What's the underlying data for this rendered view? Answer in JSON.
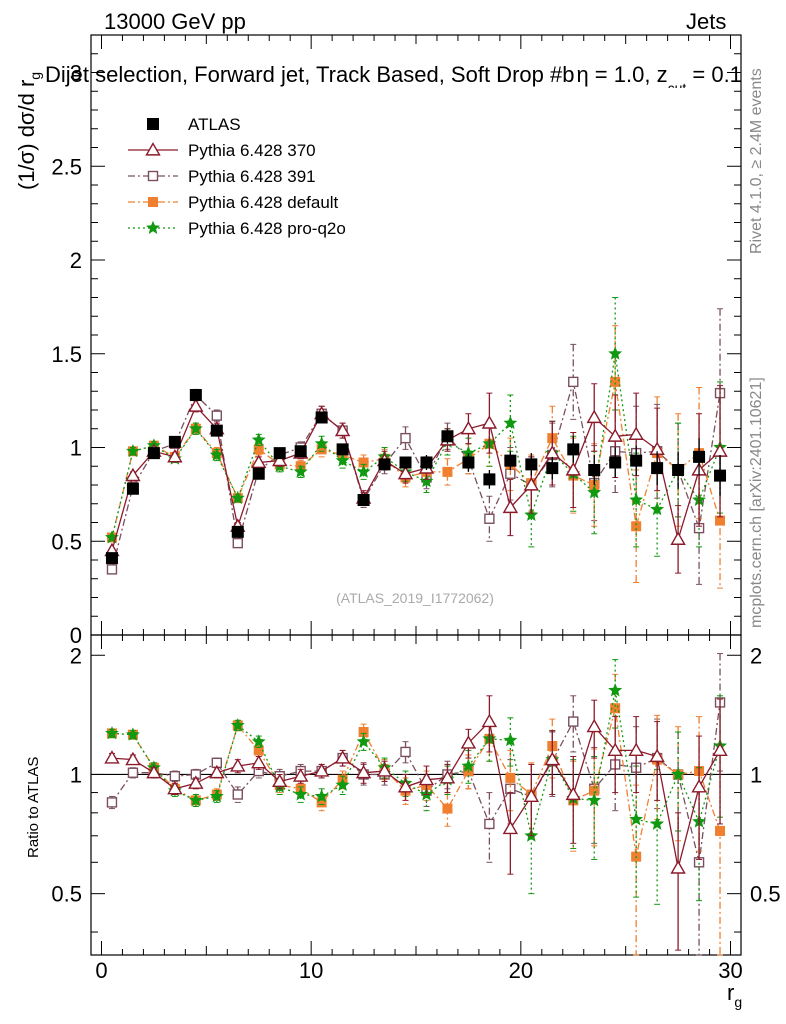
{
  "header": {
    "energy_label": "13000 GeV pp",
    "category_label": "Jets",
    "title_main": "Dijet selection, Forward jet, Track Based, Soft Drop #b",
    "title_eta": "η = 1.0, z",
    "title_cut": "cut",
    "title_tail": " = 0.1"
  },
  "side_labels": {
    "rivet": "Rivet 4.1.0, ≥ 2.4M events",
    "mcplots": "mcplots.cern.ch [arXiv:2401.10621]"
  },
  "analysis_tag": "(ATLAS_2019_I1772062)",
  "colors": {
    "data": "#000000",
    "p370": "#8b1a2b",
    "p391": "#7a5060",
    "pdefault": "#f08030",
    "pq2o": "#119911"
  },
  "chart_data": [
    {
      "type": "line",
      "panel": "main",
      "ylabel_main": "(1/σ) dσ/d r",
      "ylabel_sub": "g",
      "xlabel": "r",
      "xlabel_sub": "g",
      "xlim": [
        -0.5,
        30.5
      ],
      "ylim": [
        0,
        3.2
      ],
      "yticks": [
        0,
        0.5,
        1,
        1.5,
        2,
        2.5,
        3
      ],
      "ytick_labels": [
        "0",
        "0.5",
        "1",
        "1.5",
        "2",
        "2.5",
        "3"
      ],
      "x": [
        0.5,
        1.5,
        2.5,
        3.5,
        4.5,
        5.5,
        6.5,
        7.5,
        8.5,
        9.5,
        10.5,
        11.5,
        12.5,
        13.5,
        14.5,
        15.5,
        16.5,
        17.5,
        18.5,
        19.5,
        20.5,
        21.5,
        22.5,
        23.5,
        24.5,
        25.5,
        26.5,
        27.5,
        28.5,
        29.5
      ],
      "legend": [
        "ATLAS",
        "Pythia 6.428 370",
        "Pythia 6.428 391",
        "Pythia 6.428 default",
        "Pythia 6.428 pro-q2o"
      ],
      "series": [
        {
          "name": "ATLAS",
          "values": [
            0.41,
            0.78,
            0.97,
            1.03,
            1.28,
            1.09,
            0.55,
            0.86,
            0.97,
            0.98,
            1.16,
            0.99,
            0.72,
            0.91,
            0.92,
            0.92,
            1.06,
            0.92,
            0.83,
            0.93,
            0.91,
            0.89,
            0.99,
            0.88,
            0.92,
            0.93,
            0.89,
            0.88,
            0.95,
            0.85
          ],
          "errors": [
            0.02,
            0.02,
            0.02,
            0.02,
            0.02,
            0.02,
            0.02,
            0.02,
            0.02,
            0.02,
            0.02,
            0.02,
            0.03,
            0.03,
            0.03,
            0.04,
            0.04,
            0.05,
            0.05,
            0.05,
            0.06,
            0.06,
            0.07,
            0.08,
            0.08,
            0.08,
            0.09,
            0.1,
            0.1,
            0.11
          ]
        },
        {
          "name": "Pythia 6.428 370",
          "values": [
            0.45,
            0.85,
            0.98,
            0.95,
            1.22,
            1.1,
            0.58,
            0.92,
            0.93,
            0.97,
            1.18,
            1.09,
            0.73,
            0.93,
            0.86,
            0.89,
            1.04,
            1.1,
            1.13,
            0.68,
            0.8,
            0.97,
            0.88,
            1.16,
            1.06,
            1.07,
            0.99,
            0.51,
            0.88,
            0.98
          ],
          "errors": [
            0.01,
            0.02,
            0.02,
            0.02,
            0.03,
            0.03,
            0.02,
            0.03,
            0.03,
            0.03,
            0.04,
            0.04,
            0.04,
            0.05,
            0.05,
            0.06,
            0.06,
            0.08,
            0.16,
            0.15,
            0.15,
            0.17,
            0.2,
            0.18,
            0.22,
            0.22,
            0.22,
            0.18,
            0.3,
            0.35
          ]
        },
        {
          "name": "Pythia 6.428 391",
          "values": [
            0.35,
            0.79,
            0.98,
            1.02,
            1.28,
            1.17,
            0.49,
            0.88,
            0.96,
            1.0,
            1.18,
            1.09,
            0.72,
            0.91,
            1.05,
            0.84,
            1.06,
            0.94,
            0.62,
            0.86,
            0.8,
            0.96,
            1.35,
            0.81,
            0.98,
            0.97,
            0.98,
            0.88,
            0.57,
            1.29
          ],
          "errors": [
            0.01,
            0.02,
            0.02,
            0.02,
            0.03,
            0.03,
            0.02,
            0.03,
            0.03,
            0.03,
            0.04,
            0.04,
            0.04,
            0.05,
            0.06,
            0.06,
            0.07,
            0.08,
            0.12,
            0.14,
            0.15,
            0.17,
            0.2,
            0.2,
            0.22,
            0.25,
            0.25,
            0.25,
            0.3,
            0.45
          ]
        },
        {
          "name": "Pythia 6.428 default",
          "values": [
            0.52,
            0.98,
            1.01,
            0.95,
            1.1,
            0.97,
            0.73,
            0.99,
            0.91,
            0.9,
            0.99,
            0.96,
            0.92,
            0.94,
            0.84,
            0.87,
            0.87,
            0.94,
            1.02,
            0.91,
            0.81,
            1.05,
            0.85,
            0.8,
            1.35,
            0.58,
            0.97,
            0.88,
            0.97,
            0.61
          ],
          "errors": [
            0.01,
            0.02,
            0.02,
            0.02,
            0.03,
            0.03,
            0.02,
            0.03,
            0.03,
            0.03,
            0.04,
            0.04,
            0.04,
            0.05,
            0.05,
            0.06,
            0.07,
            0.08,
            0.12,
            0.14,
            0.15,
            0.17,
            0.2,
            0.22,
            0.3,
            0.3,
            0.3,
            0.3,
            0.35,
            0.36
          ]
        },
        {
          "name": "Pythia 6.428 pro-q2o",
          "values": [
            0.52,
            0.98,
            1.01,
            0.94,
            1.1,
            0.96,
            0.73,
            1.04,
            0.9,
            0.87,
            1.02,
            0.93,
            0.87,
            0.95,
            0.87,
            0.82,
            1.03,
            0.97,
            1.02,
            1.13,
            0.64,
            0.97,
            0.86,
            0.76,
            1.5,
            0.72,
            0.67,
            0.88,
            0.72,
            1.0
          ],
          "errors": [
            0.01,
            0.02,
            0.02,
            0.02,
            0.03,
            0.03,
            0.02,
            0.03,
            0.03,
            0.03,
            0.04,
            0.04,
            0.04,
            0.05,
            0.05,
            0.06,
            0.07,
            0.08,
            0.12,
            0.15,
            0.17,
            0.17,
            0.2,
            0.22,
            0.3,
            0.25,
            0.25,
            0.25,
            0.25,
            0.35
          ]
        }
      ]
    },
    {
      "type": "line",
      "panel": "ratio",
      "ylabel": "Ratio to ATLAS",
      "xlim": [
        -0.5,
        30.5
      ],
      "ylim": [
        0.35,
        2.25
      ],
      "yticks": [
        0.5,
        1,
        2
      ],
      "ytick_labels": [
        "0.5",
        "1",
        "2"
      ],
      "xticks": [
        0,
        10,
        20,
        30
      ],
      "xtick_labels": [
        "0",
        "10",
        "20",
        "30"
      ],
      "x": [
        0.5,
        1.5,
        2.5,
        3.5,
        4.5,
        5.5,
        6.5,
        7.5,
        8.5,
        9.5,
        10.5,
        11.5,
        12.5,
        13.5,
        14.5,
        15.5,
        16.5,
        17.5,
        18.5,
        19.5,
        20.5,
        21.5,
        22.5,
        23.5,
        24.5,
        25.5,
        26.5,
        27.5,
        28.5,
        29.5
      ],
      "series": [
        {
          "name": "Pythia 6.428 370",
          "values": [
            1.1,
            1.09,
            1.01,
            0.92,
            0.95,
            1.01,
            1.05,
            1.07,
            0.96,
            0.99,
            1.02,
            1.1,
            1.01,
            1.02,
            0.93,
            0.97,
            0.98,
            1.2,
            1.36,
            0.73,
            0.88,
            1.09,
            0.89,
            1.32,
            1.15,
            1.15,
            1.11,
            0.58,
            0.93,
            1.15
          ],
          "errors": [
            0.03,
            0.03,
            0.03,
            0.03,
            0.03,
            0.03,
            0.04,
            0.04,
            0.04,
            0.04,
            0.04,
            0.05,
            0.06,
            0.06,
            0.07,
            0.08,
            0.08,
            0.1,
            0.22,
            0.17,
            0.18,
            0.2,
            0.22,
            0.22,
            0.25,
            0.25,
            0.25,
            0.22,
            0.32,
            0.4
          ]
        },
        {
          "name": "Pythia 6.428 391",
          "values": [
            0.85,
            1.01,
            1.01,
            0.99,
            1.0,
            1.07,
            0.89,
            1.02,
            0.99,
            1.02,
            1.02,
            1.1,
            1.0,
            1.0,
            1.14,
            0.91,
            1.0,
            1.02,
            0.75,
            0.92,
            0.88,
            1.08,
            1.36,
            0.92,
            1.06,
            1.04,
            1.1,
            1.0,
            0.6,
            1.52
          ],
          "errors": [
            0.03,
            0.03,
            0.03,
            0.03,
            0.03,
            0.03,
            0.04,
            0.04,
            0.04,
            0.04,
            0.04,
            0.05,
            0.06,
            0.06,
            0.07,
            0.08,
            0.08,
            0.1,
            0.15,
            0.17,
            0.18,
            0.2,
            0.22,
            0.25,
            0.25,
            0.28,
            0.28,
            0.28,
            0.32,
            0.5
          ]
        },
        {
          "name": "Pythia 6.428 default",
          "values": [
            1.27,
            1.26,
            1.04,
            0.92,
            0.86,
            0.89,
            1.33,
            1.15,
            0.94,
            0.92,
            0.85,
            0.97,
            1.28,
            1.03,
            0.91,
            0.94,
            0.82,
            1.02,
            1.23,
            0.98,
            0.89,
            1.18,
            0.86,
            0.91,
            1.47,
            0.62,
            1.09,
            1.0,
            1.02,
            0.72
          ],
          "errors": [
            0.03,
            0.03,
            0.03,
            0.03,
            0.03,
            0.03,
            0.04,
            0.04,
            0.04,
            0.04,
            0.04,
            0.05,
            0.06,
            0.06,
            0.07,
            0.08,
            0.08,
            0.1,
            0.15,
            0.17,
            0.18,
            0.2,
            0.22,
            0.25,
            0.32,
            0.32,
            0.32,
            0.32,
            0.38,
            0.42
          ]
        },
        {
          "name": "Pythia 6.428 pro-q2o",
          "values": [
            1.27,
            1.26,
            1.04,
            0.91,
            0.86,
            0.88,
            1.33,
            1.21,
            0.93,
            0.89,
            0.88,
            0.94,
            1.21,
            1.04,
            0.95,
            0.89,
            0.97,
            1.05,
            1.23,
            1.22,
            0.7,
            1.09,
            0.87,
            0.86,
            1.63,
            0.77,
            0.75,
            1.0,
            0.76,
            1.18
          ],
          "errors": [
            0.03,
            0.03,
            0.03,
            0.03,
            0.03,
            0.03,
            0.04,
            0.04,
            0.04,
            0.04,
            0.04,
            0.05,
            0.06,
            0.06,
            0.07,
            0.08,
            0.08,
            0.1,
            0.15,
            0.17,
            0.2,
            0.2,
            0.22,
            0.25,
            0.32,
            0.28,
            0.28,
            0.28,
            0.28,
            0.4
          ]
        }
      ]
    }
  ]
}
